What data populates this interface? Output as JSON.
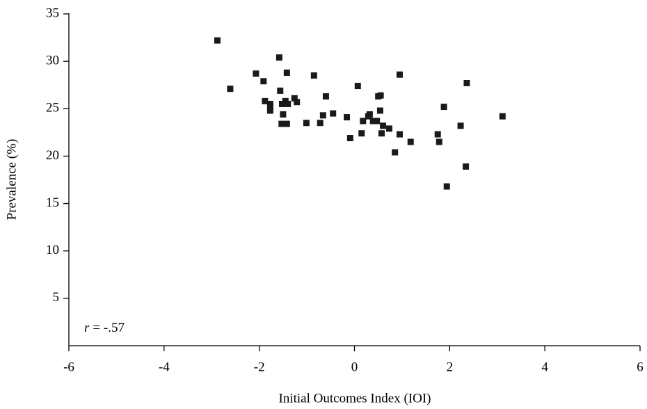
{
  "chart_data": {
    "type": "scatter",
    "x_label": "Initial Outcomes Index (IOI)",
    "y_label": "Prevalence (%)",
    "annotation_symbol": "r",
    "annotation_text": "= -.57",
    "color": "#1a1a1a",
    "xlim": [
      -6,
      6
    ],
    "xticks": [
      -6,
      -4,
      -2,
      0,
      2,
      4,
      6
    ],
    "ylim": [
      0,
      35
    ],
    "yticks": [
      5,
      10,
      15,
      20,
      25,
      30,
      35
    ],
    "grid": false,
    "x": [
      -2.88,
      -2.61,
      -2.07,
      -1.91,
      -1.88,
      -1.77,
      -1.77,
      -1.77,
      -1.58,
      -1.56,
      -1.52,
      -1.5,
      -1.53,
      -1.45,
      -1.42,
      -1.42,
      -1.4,
      -1.26,
      -1.21,
      -1.01,
      -0.85,
      -0.72,
      -0.66,
      -0.6,
      -0.45,
      -0.16,
      -0.09,
      0.07,
      0.15,
      0.18,
      0.29,
      0.32,
      0.39,
      0.47,
      0.5,
      0.54,
      0.55,
      0.57,
      0.6,
      0.73,
      0.85,
      0.95,
      0.95,
      1.18,
      1.75,
      1.78,
      1.88,
      1.94,
      2.23,
      2.34,
      2.36,
      3.11
    ],
    "values": [
      32.2,
      27.1,
      28.7,
      27.9,
      25.8,
      25.5,
      25.2,
      24.8,
      30.4,
      26.9,
      25.5,
      24.4,
      23.4,
      25.8,
      23.4,
      28.8,
      25.5,
      26.1,
      25.7,
      23.5,
      28.5,
      23.5,
      24.3,
      26.3,
      24.5,
      24.1,
      21.9,
      27.4,
      22.4,
      23.7,
      24.2,
      24.4,
      23.7,
      23.7,
      26.3,
      24.8,
      26.4,
      22.4,
      23.2,
      22.9,
      20.4,
      28.6,
      22.3,
      21.5,
      22.3,
      21.5,
      25.2,
      16.8,
      23.2,
      18.9,
      27.7,
      24.2
    ]
  }
}
